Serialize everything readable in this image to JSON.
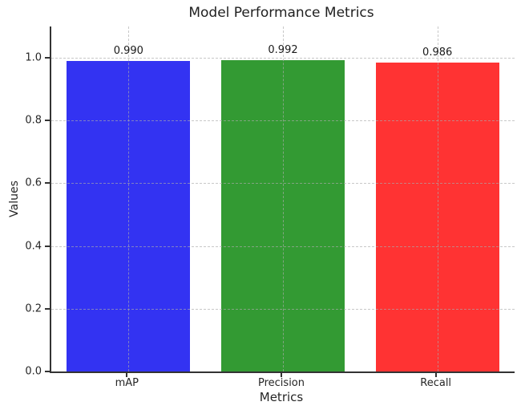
{
  "chart_data": {
    "type": "bar",
    "title": "Model Performance Metrics",
    "xlabel": "Metrics",
    "ylabel": "Values",
    "categories": [
      "mAP",
      "Precision",
      "Recall"
    ],
    "values": [
      0.99,
      0.992,
      0.986
    ],
    "value_labels": [
      "0.990",
      "0.992",
      "0.986"
    ],
    "bar_colors": [
      "#3333f2",
      "#339a33",
      "#ff3333"
    ],
    "ylim": [
      0,
      1.1
    ],
    "yticks": [
      0.0,
      0.2,
      0.4,
      0.6,
      0.8,
      1.0
    ],
    "ytick_labels": [
      "0.0",
      "0.2",
      "0.4",
      "0.6",
      "0.8",
      "1.0"
    ],
    "grid": {
      "horizontal": true,
      "vertical": true,
      "style": "dashed",
      "above_bars": true
    },
    "legend": null,
    "background": "#ffffff",
    "spine_color": "#333333"
  }
}
